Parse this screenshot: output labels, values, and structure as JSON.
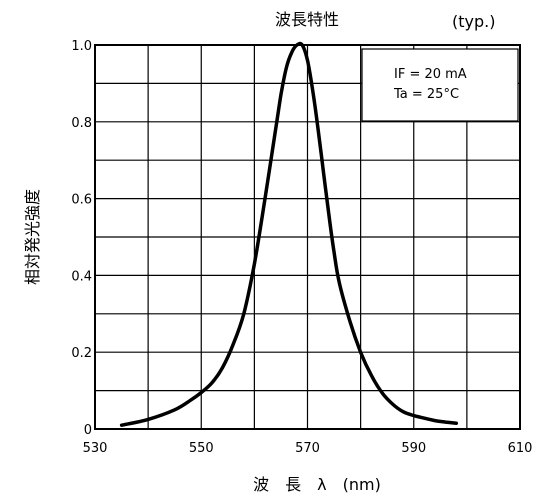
{
  "chart_data": {
    "type": "line",
    "title": "波長特性",
    "note": "(typ.)",
    "xlabel": "波　長　λ　(nm)",
    "ylabel": "相対発光強度",
    "xlim": [
      530,
      610
    ],
    "ylim": [
      0,
      1.0
    ],
    "x_ticks": [
      "530",
      "550",
      "570",
      "590",
      "610"
    ],
    "y_ticks": [
      "0",
      "0.2",
      "0.4",
      "0.6",
      "0.8",
      "1.0"
    ],
    "grid": true,
    "conditions": [
      "IF = 20 mA",
      "Ta = 25°C"
    ],
    "series": [
      {
        "x": [
          535,
          540,
          545,
          548,
          550,
          552,
          554,
          556,
          558,
          560,
          562,
          564,
          565,
          566,
          567,
          568,
          569,
          570,
          571,
          572,
          573,
          574,
          575,
          576,
          578,
          580,
          582,
          584,
          586,
          588,
          590,
          592,
          594,
          596,
          598
        ],
        "y": [
          0.01,
          0.025,
          0.05,
          0.075,
          0.095,
          0.12,
          0.16,
          0.22,
          0.3,
          0.43,
          0.6,
          0.78,
          0.87,
          0.94,
          0.98,
          1.0,
          1.0,
          0.96,
          0.88,
          0.78,
          0.67,
          0.56,
          0.46,
          0.38,
          0.28,
          0.2,
          0.14,
          0.095,
          0.065,
          0.045,
          0.035,
          0.028,
          0.022,
          0.018,
          0.015
        ]
      }
    ]
  }
}
